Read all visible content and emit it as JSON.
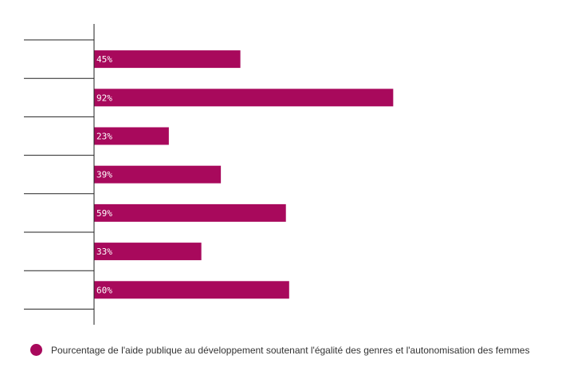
{
  "chart_data": {
    "type": "bar",
    "orientation": "horizontal",
    "categories": [
      "",
      "",
      "",
      "",
      "",
      "",
      ""
    ],
    "series": [
      {
        "name": "Pourcentage de l'aide publique au développement soutenant l'égalité des genres et l'autonomisation des femmes",
        "values": [
          45,
          92,
          23,
          39,
          59,
          33,
          60
        ],
        "labels": [
          "45%",
          "92%",
          "23%",
          "39%",
          "59%",
          "33%",
          "60%"
        ]
      }
    ],
    "xlim": [
      0,
      100
    ],
    "grid": false,
    "legend_position": "bottom-left",
    "color": "#a8095c"
  },
  "legend": {
    "label": "Pourcentage de l'aide publique au développement soutenant l'égalité des genres et l'autonomisation des femmes"
  }
}
